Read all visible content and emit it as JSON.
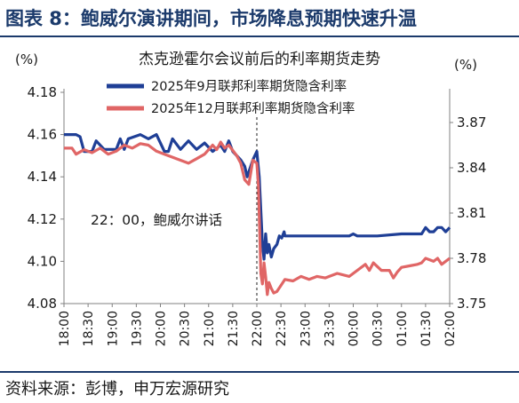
{
  "header": {
    "title": "图表 8：鲍威尔演讲期间，市场降息预期快速升温"
  },
  "source": "资料来源：彭博，申万宏源研究",
  "colors": {
    "navy": "#1b3a6b",
    "series1": "#1f3f96",
    "series2": "#e06666",
    "axis": "#5a5a5a"
  },
  "chart_data": {
    "type": "line",
    "title": "杰克逊霍尔会议前后的利率期货走势",
    "left_unit": "(%)",
    "right_unit": "(%)",
    "annotation": "22：00，鲍威尔讲话",
    "event_time": "22:00",
    "x_ticks": [
      "18:00",
      "18:30",
      "19:00",
      "19:30",
      "20:00",
      "20:30",
      "21:00",
      "21:30",
      "22:00",
      "22:30",
      "23:00",
      "23:30",
      "00:00",
      "00:30",
      "01:00",
      "01:30",
      "02:00"
    ],
    "left_axis": {
      "ticks": [
        "4.08",
        "4.10",
        "4.12",
        "4.14",
        "4.16",
        "4.18"
      ],
      "ylim": [
        4.08,
        4.18
      ]
    },
    "right_axis": {
      "ticks": [
        "3.75",
        "3.78",
        "3.81",
        "3.84",
        "3.87"
      ],
      "ylim": [
        3.75,
        3.89
      ]
    },
    "legend_position": "top",
    "series": [
      {
        "name": "2025年9月联邦利率期货隐含利率",
        "axis": "left",
        "color": "#1f3f96",
        "points": [
          [
            "18:00",
            4.16
          ],
          [
            "18:15",
            4.16
          ],
          [
            "18:20",
            4.159
          ],
          [
            "18:25",
            4.152
          ],
          [
            "18:35",
            4.152
          ],
          [
            "18:40",
            4.157
          ],
          [
            "18:50",
            4.153
          ],
          [
            "19:05",
            4.153
          ],
          [
            "19:10",
            4.158
          ],
          [
            "19:15",
            4.153
          ],
          [
            "19:20",
            4.158
          ],
          [
            "19:35",
            4.16
          ],
          [
            "19:45",
            4.158
          ],
          [
            "19:55",
            4.16
          ],
          [
            "20:05",
            4.152
          ],
          [
            "20:10",
            4.152
          ],
          [
            "20:15",
            4.158
          ],
          [
            "20:25",
            4.153
          ],
          [
            "20:35",
            4.157
          ],
          [
            "20:45",
            4.153
          ],
          [
            "20:55",
            4.156
          ],
          [
            "21:05",
            4.152
          ],
          [
            "21:15",
            4.155
          ],
          [
            "21:20",
            4.152
          ],
          [
            "21:25",
            4.157
          ],
          [
            "21:30",
            4.152
          ],
          [
            "21:35",
            4.15
          ],
          [
            "21:40",
            4.148
          ],
          [
            "21:45",
            4.145
          ],
          [
            "21:48",
            4.14
          ],
          [
            "21:55",
            4.148
          ],
          [
            "22:00",
            4.152
          ],
          [
            "22:03",
            4.14
          ],
          [
            "22:05",
            4.124
          ],
          [
            "22:07",
            4.108
          ],
          [
            "22:09",
            4.101
          ],
          [
            "22:11",
            4.113
          ],
          [
            "22:13",
            4.104
          ],
          [
            "22:15",
            4.108
          ],
          [
            "22:18",
            4.102
          ],
          [
            "22:21",
            4.106
          ],
          [
            "22:25",
            4.108
          ],
          [
            "22:28",
            4.112
          ],
          [
            "22:31",
            4.111
          ],
          [
            "22:34",
            4.114
          ],
          [
            "22:35",
            4.112
          ],
          [
            "23:00",
            4.112
          ],
          [
            "23:30",
            4.112
          ],
          [
            "23:55",
            4.112
          ],
          [
            "00:00",
            4.113
          ],
          [
            "00:05",
            4.112
          ],
          [
            "00:30",
            4.112
          ],
          [
            "01:00",
            4.113
          ],
          [
            "01:25",
            4.113
          ],
          [
            "01:30",
            4.116
          ],
          [
            "01:35",
            4.114
          ],
          [
            "01:40",
            4.114
          ],
          [
            "01:45",
            4.116
          ],
          [
            "01:50",
            4.116
          ],
          [
            "01:55",
            4.114
          ],
          [
            "02:00",
            4.116
          ]
        ]
      },
      {
        "name": "2025年12月联邦利率期货隐含利率",
        "axis": "right",
        "color": "#e06666",
        "points": [
          [
            "18:00",
            3.853
          ],
          [
            "18:10",
            3.853
          ],
          [
            "18:15",
            3.849
          ],
          [
            "18:25",
            3.852
          ],
          [
            "18:35",
            3.85
          ],
          [
            "18:45",
            3.853
          ],
          [
            "18:55",
            3.849
          ],
          [
            "19:05",
            3.851
          ],
          [
            "19:15",
            3.855
          ],
          [
            "19:25",
            3.853
          ],
          [
            "19:35",
            3.856
          ],
          [
            "19:45",
            3.855
          ],
          [
            "19:55",
            3.851
          ],
          [
            "20:05",
            3.849
          ],
          [
            "20:15",
            3.847
          ],
          [
            "20:25",
            3.845
          ],
          [
            "20:35",
            3.843
          ],
          [
            "20:45",
            3.846
          ],
          [
            "20:55",
            3.849
          ],
          [
            "21:05",
            3.855
          ],
          [
            "21:10",
            3.852
          ],
          [
            "21:15",
            3.857
          ],
          [
            "21:20",
            3.853
          ],
          [
            "21:25",
            3.855
          ],
          [
            "21:35",
            3.848
          ],
          [
            "21:40",
            3.843
          ],
          [
            "21:45",
            3.832
          ],
          [
            "21:50",
            3.829
          ],
          [
            "21:55",
            3.845
          ],
          [
            "22:00",
            3.843
          ],
          [
            "22:02",
            3.828
          ],
          [
            "22:05",
            3.77
          ],
          [
            "22:07",
            3.763
          ],
          [
            "22:09",
            3.777
          ],
          [
            "22:11",
            3.768
          ],
          [
            "22:13",
            3.756
          ],
          [
            "22:15",
            3.764
          ],
          [
            "22:18",
            3.76
          ],
          [
            "22:21",
            3.757
          ],
          [
            "22:25",
            3.758
          ],
          [
            "22:30",
            3.762
          ],
          [
            "22:35",
            3.766
          ],
          [
            "22:45",
            3.765
          ],
          [
            "22:55",
            3.768
          ],
          [
            "23:05",
            3.766
          ],
          [
            "23:15",
            3.768
          ],
          [
            "23:25",
            3.767
          ],
          [
            "23:40",
            3.77
          ],
          [
            "23:55",
            3.768
          ],
          [
            "00:05",
            3.772
          ],
          [
            "00:15",
            3.776
          ],
          [
            "00:20",
            3.772
          ],
          [
            "00:25",
            3.777
          ],
          [
            "00:35",
            3.772
          ],
          [
            "00:45",
            3.772
          ],
          [
            "00:50",
            3.767
          ],
          [
            "00:55",
            3.771
          ],
          [
            "01:00",
            3.774
          ],
          [
            "01:10",
            3.775
          ],
          [
            "01:20",
            3.776
          ],
          [
            "01:25",
            3.777
          ],
          [
            "01:30",
            3.78
          ],
          [
            "01:40",
            3.778
          ],
          [
            "01:45",
            3.78
          ],
          [
            "01:50",
            3.776
          ],
          [
            "02:00",
            3.78
          ]
        ]
      }
    ]
  }
}
